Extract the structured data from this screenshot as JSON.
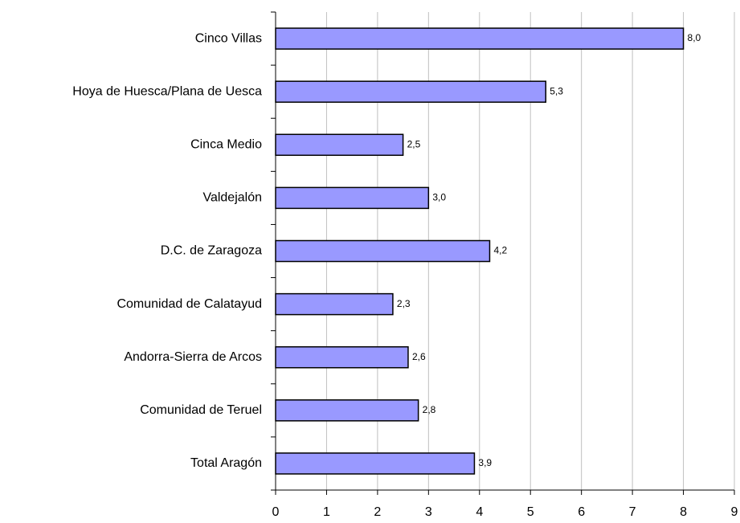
{
  "chart_data": {
    "type": "bar",
    "orientation": "horizontal",
    "categories": [
      "Cinco Villas",
      "Hoya de Huesca/Plana de Uesca",
      "Cinca Medio",
      "Valdejalón",
      "D.C. de Zaragoza",
      "Comunidad de Calatayud",
      "Andorra-Sierra de Arcos",
      "Comunidad de Teruel",
      "Total Aragón"
    ],
    "values": [
      8.0,
      5.3,
      2.5,
      3.0,
      4.2,
      2.3,
      2.6,
      2.8,
      3.9
    ],
    "value_labels": [
      "8,0",
      "5,3",
      "2,5",
      "3,0",
      "4,2",
      "2,3",
      "2,6",
      "2,8",
      "3,9"
    ],
    "color": "#9999ff",
    "xlim": [
      0,
      9
    ],
    "xticks": [
      0,
      1,
      2,
      3,
      4,
      5,
      6,
      7,
      8,
      9
    ],
    "grid": true
  }
}
